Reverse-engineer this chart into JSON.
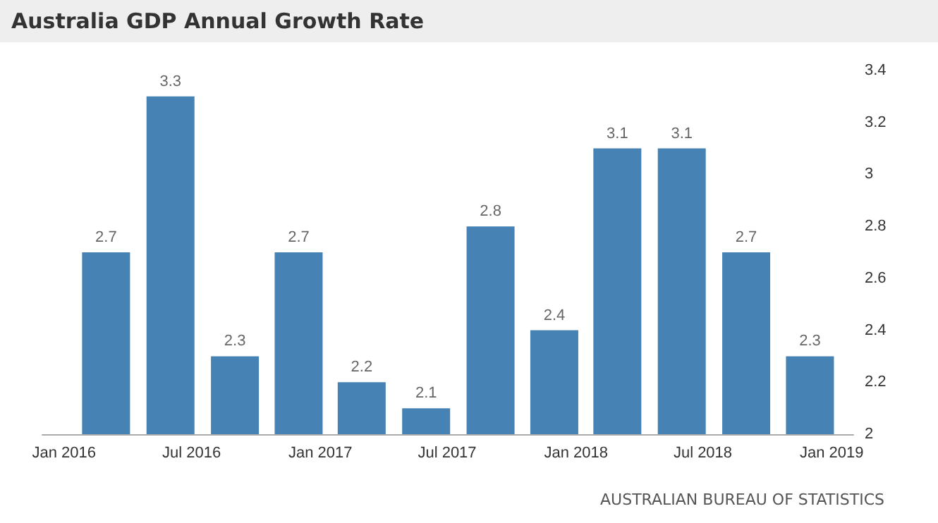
{
  "chart_data": {
    "type": "bar",
    "title": "Australia GDP Annual Growth Rate",
    "x": [
      "2016-03",
      "2016-06",
      "2016-09",
      "2016-12",
      "2017-03",
      "2017-06",
      "2017-09",
      "2017-12",
      "2018-03",
      "2018-06",
      "2018-09",
      "2018-12"
    ],
    "values": [
      2.7,
      3.3,
      2.3,
      2.7,
      2.2,
      2.1,
      2.8,
      2.4,
      3.1,
      3.1,
      2.7,
      2.3
    ],
    "color": "#4682b4",
    "xlim": [
      "2015-12",
      "2019-02"
    ],
    "xticks": [
      {
        "value": "2016-01",
        "label": "Jan 2016"
      },
      {
        "value": "2016-07",
        "label": "Jul 2016"
      },
      {
        "value": "2017-01",
        "label": "Jan 2017"
      },
      {
        "value": "2017-07",
        "label": "Jul 2017"
      },
      {
        "value": "2018-01",
        "label": "Jan 2018"
      },
      {
        "value": "2018-07",
        "label": "Jul 2018"
      },
      {
        "value": "2019-01",
        "label": "Jan 2019"
      }
    ],
    "ylim": [
      2,
      3.4
    ],
    "yticks": [
      2,
      2.2,
      2.4,
      2.6,
      2.8,
      3,
      3.2,
      3.4
    ],
    "data_labels": true,
    "annotations": [
      "AUSTRALIAN BUREAU OF STATISTICS"
    ]
  }
}
